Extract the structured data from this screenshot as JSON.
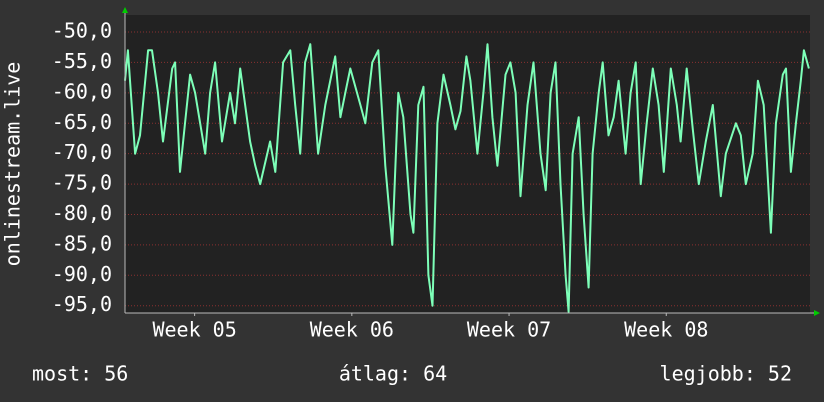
{
  "chart_data": {
    "type": "line",
    "y_label": "onlinestream.live",
    "x": [
      0,
      0.13,
      0.45,
      0.67,
      1.03,
      1.2,
      1.47,
      1.69,
      2.1,
      2.23,
      2.45,
      2.67,
      2.9,
      3.12,
      3.57,
      3.79,
      4.01,
      4.32,
      4.68,
      4.9,
      5.13,
      5.57,
      5.8,
      6.02,
      6.46,
      6.69,
      7.04,
      7.36,
      7.58,
      7.8,
      8.02,
      8.25,
      8.6,
      8.92,
      9.36,
      9.59,
      9.81,
      10.03,
      10.48,
      10.7,
      11.01,
      11.28,
      11.59,
      11.9,
      12.17,
      12.39,
      12.71,
      12.84,
      13.06,
      13.29,
      13.51,
      13.69,
      13.91,
      14.18,
      14.49,
      14.71,
      14.94,
      15.2,
      15.38,
      15.69,
      15.96,
      16.14,
      16.36,
      16.58,
      16.94,
      17.16,
      17.39,
      17.61,
      17.92,
      18.19,
      18.5,
      18.73,
      18.95,
      19.17,
      19.39,
      19.62,
      19.75,
      19.93,
      20.2,
      20.42,
      20.64,
      20.82,
      21.09,
      21.27,
      21.53,
      21.76,
      21.98,
      22.29,
      22.51,
      22.74,
      22.96,
      23.23,
      23.5,
      23.76,
      23.99,
      24.3,
      24.57,
      24.74,
      25.01,
      25.28,
      25.55,
      25.86,
      26.17,
      26.53,
      26.75,
      27.2,
      27.42,
      27.64,
      27.95,
      28.18,
      28.44,
      28.76,
      28.98,
      29.29,
      29.43,
      29.65,
      29.87,
      30.09,
      30.23,
      30.45
    ],
    "series": [
      {
        "color": "#7dffb8",
        "values": [
          -58,
          -53,
          -70,
          -67,
          -53,
          -53,
          -60,
          -68,
          -56,
          -55,
          -73,
          -65,
          -57,
          -60,
          -70,
          -60,
          -55,
          -68,
          -60,
          -65,
          -56,
          -68,
          -72,
          -75,
          -68,
          -73,
          -55,
          -53,
          -62,
          -70,
          -55,
          -52,
          -70,
          -62,
          -54,
          -64,
          -60,
          -56,
          -62,
          -65,
          -55,
          -53,
          -72,
          -85,
          -60,
          -64,
          -80,
          -83,
          -62,
          -59,
          -90,
          -95,
          -65,
          -57,
          -62,
          -66,
          -63,
          -54,
          -58,
          -70,
          -60,
          -52,
          -64,
          -72,
          -57,
          -55,
          -60,
          -77,
          -62,
          -55,
          -70,
          -76,
          -60,
          -55,
          -75,
          -90,
          -96,
          -70,
          -64,
          -80,
          -92,
          -70,
          -60,
          -55,
          -67,
          -64,
          -58,
          -70,
          -60,
          -55,
          -75,
          -65,
          -56,
          -62,
          -73,
          -56,
          -62,
          -68,
          -56,
          -66,
          -75,
          -68,
          -62,
          -77,
          -70,
          -65,
          -67,
          -75,
          -70,
          -58,
          -62,
          -83,
          -65,
          -57,
          -56,
          -73,
          -65,
          -58,
          -53,
          -56
        ]
      }
    ],
    "xlim": [
      0,
      30.5
    ],
    "xticks": [
      {
        "value": 3.1,
        "label": "Week 05"
      },
      {
        "value": 10.1,
        "label": "Week 06"
      },
      {
        "value": 17.1,
        "label": "Week 07"
      },
      {
        "value": 24.1,
        "label": "Week 08"
      }
    ],
    "ylim": [
      -96.2,
      -47.2
    ],
    "yticks": [
      {
        "value": -50,
        "label": "-50,0"
      },
      {
        "value": -55,
        "label": "-55,0"
      },
      {
        "value": -60,
        "label": "-60,0"
      },
      {
        "value": -65,
        "label": "-65,0"
      },
      {
        "value": -70,
        "label": "-70,0"
      },
      {
        "value": -75,
        "label": "-75,0"
      },
      {
        "value": -80,
        "label": "-80,0"
      },
      {
        "value": -85,
        "label": "-85,0"
      },
      {
        "value": -90,
        "label": "-90,0"
      },
      {
        "value": -95,
        "label": "-95,0"
      }
    ],
    "grid": true,
    "stats": [
      "most: 56",
      "átlag: 64",
      "legjobb: 52"
    ]
  }
}
